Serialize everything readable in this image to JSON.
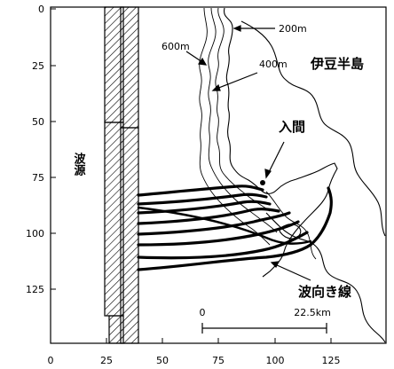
{
  "x_ticks": [
    "0",
    "25",
    "50",
    "75",
    "100",
    "125"
  ],
  "y_ticks": [
    "0",
    "25",
    "50",
    "75",
    "100",
    "125"
  ],
  "labels": {
    "region": "伊豆半島",
    "location": "入間",
    "source": "波源",
    "wave_rays": "波向き線",
    "contour_200": "200m",
    "contour_400": "400m",
    "contour_600": "600m"
  },
  "scale_bar": {
    "start_label": "0",
    "end_label": "22.5km"
  }
}
